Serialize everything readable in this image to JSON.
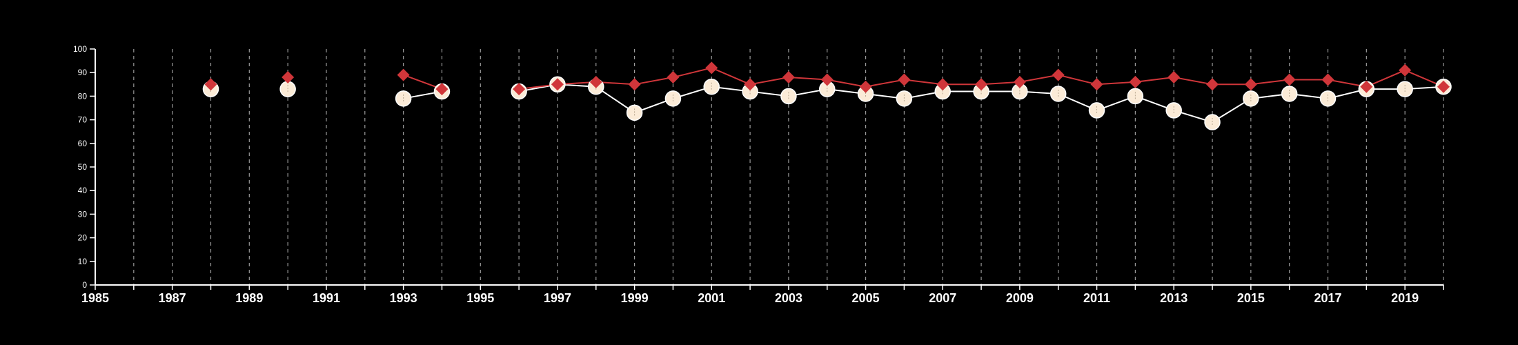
{
  "chart_data": {
    "type": "line",
    "title": "",
    "xlabel": "",
    "ylabel": "",
    "xlim": [
      1985,
      2020
    ],
    "ylim": [
      0,
      100
    ],
    "y_ticks": [
      0,
      10,
      20,
      30,
      40,
      50,
      60,
      70,
      80,
      90,
      100
    ],
    "x_tick_labels": [
      1985,
      1987,
      1989,
      1991,
      1993,
      1995,
      1997,
      1999,
      2001,
      2003,
      2005,
      2007,
      2009,
      2011,
      2013,
      2015,
      2017,
      2019
    ],
    "grid": "vertical dashed lines at each year",
    "legend": "none",
    "colors": {
      "background": "#000000",
      "axis": "#ffffff",
      "grid": "#9a9a9a",
      "series_red": "#d0363a",
      "series_cream": "#fbebd7",
      "series_cream_line": "#ffffff"
    },
    "series": [
      {
        "marker": "diamond",
        "color": "#d0363a",
        "points": [
          [
            1988,
            85
          ],
          [
            1990,
            88
          ],
          [
            1993,
            89
          ],
          [
            1994,
            83
          ],
          [
            1996,
            83
          ],
          [
            1997,
            85
          ],
          [
            1998,
            86
          ],
          [
            1999,
            85
          ],
          [
            2000,
            88
          ],
          [
            2001,
            92
          ],
          [
            2002,
            85
          ],
          [
            2003,
            88
          ],
          [
            2004,
            87
          ],
          [
            2005,
            84
          ],
          [
            2006,
            87
          ],
          [
            2007,
            85
          ],
          [
            2008,
            85
          ],
          [
            2009,
            86
          ],
          [
            2010,
            89
          ],
          [
            2011,
            85
          ],
          [
            2012,
            86
          ],
          [
            2013,
            88
          ],
          [
            2014,
            85
          ],
          [
            2015,
            85
          ],
          [
            2016,
            87
          ],
          [
            2017,
            87
          ],
          [
            2018,
            84
          ],
          [
            2019,
            91
          ],
          [
            2020,
            84
          ]
        ]
      },
      {
        "marker": "circle",
        "color": "#fbebd7",
        "points": [
          [
            1988,
            83
          ],
          [
            1990,
            83
          ],
          [
            1993,
            79
          ],
          [
            1994,
            82
          ],
          [
            1996,
            82
          ],
          [
            1997,
            85
          ],
          [
            1998,
            84
          ],
          [
            1999,
            73
          ],
          [
            2000,
            79
          ],
          [
            2001,
            84
          ],
          [
            2002,
            82
          ],
          [
            2003,
            80
          ],
          [
            2004,
            83
          ],
          [
            2005,
            81
          ],
          [
            2006,
            79
          ],
          [
            2007,
            82
          ],
          [
            2008,
            82
          ],
          [
            2009,
            82
          ],
          [
            2010,
            81
          ],
          [
            2011,
            74
          ],
          [
            2012,
            80
          ],
          [
            2013,
            74
          ],
          [
            2014,
            69
          ],
          [
            2015,
            79
          ],
          [
            2016,
            81
          ],
          [
            2017,
            79
          ],
          [
            2018,
            83
          ],
          [
            2019,
            83
          ],
          [
            2020,
            84
          ]
        ]
      }
    ]
  }
}
